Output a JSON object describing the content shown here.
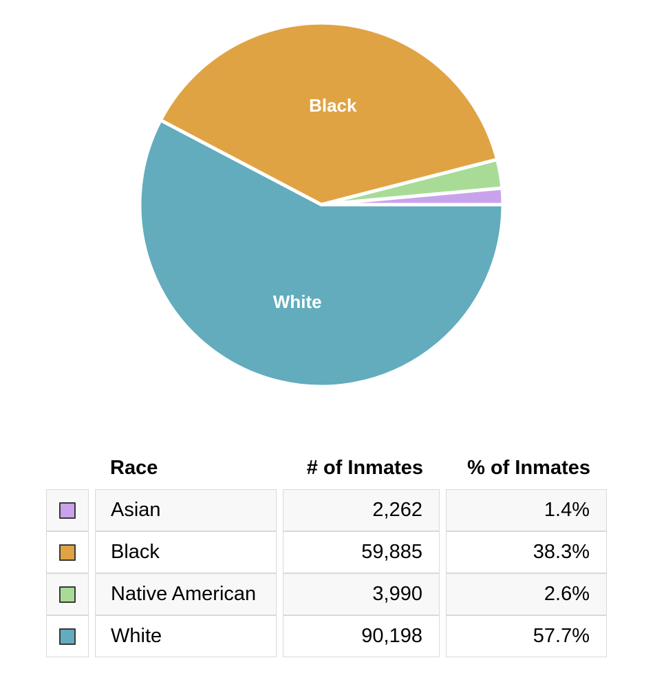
{
  "chart_data": {
    "type": "pie",
    "slices": [
      {
        "label": "Asian",
        "value": 2262,
        "pct": "1.4%",
        "color": "#c9a2ec",
        "show_label": false
      },
      {
        "label": "Black",
        "value": 59885,
        "pct": "38.3%",
        "color": "#e0a344",
        "show_label": true
      },
      {
        "label": "Native American",
        "value": 3990,
        "pct": "2.6%",
        "color": "#a8dc96",
        "show_label": false
      },
      {
        "label": "White",
        "value": 90198,
        "pct": "57.7%",
        "color": "#62acbd",
        "show_label": true
      }
    ],
    "clockwise_order": [
      "White",
      "Black",
      "Native American",
      "Asian"
    ],
    "start_angle_deg": 90,
    "slice_separator_color": "#ffffff",
    "label_color": "#ffffff",
    "legend_position": "none"
  },
  "table": {
    "headers": [
      "Race",
      "# of Inmates",
      "% of Inmates"
    ],
    "rows": [
      {
        "race": "Asian",
        "count": "2,262",
        "pct": "1.4%"
      },
      {
        "race": "Black",
        "count": "59,885",
        "pct": "38.3%"
      },
      {
        "race": "Native American",
        "count": "3,990",
        "pct": "2.6%"
      },
      {
        "race": "White",
        "count": "90,198",
        "pct": "57.7%"
      }
    ]
  }
}
